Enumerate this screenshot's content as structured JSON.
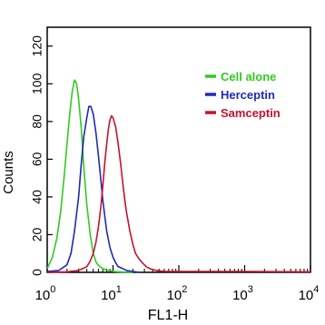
{
  "chart_data": {
    "type": "line",
    "xlabel": "FL1-H",
    "ylabel": "Counts",
    "xscale": "log",
    "xlim": [
      1,
      10000
    ],
    "ylim": [
      0,
      130
    ],
    "grid": false,
    "legend_position": "top-right",
    "x_ticks": [
      {
        "value": 1,
        "base": "10",
        "exp": "0"
      },
      {
        "value": 10,
        "base": "10",
        "exp": "1"
      },
      {
        "value": 100,
        "base": "10",
        "exp": "2"
      },
      {
        "value": 1000,
        "base": "10",
        "exp": "3"
      },
      {
        "value": 10000,
        "base": "10",
        "exp": "4"
      }
    ],
    "y_ticks": [
      0,
      20,
      40,
      60,
      80,
      100,
      120
    ],
    "series": [
      {
        "name": "Cell alone",
        "color": "#2ecc1f",
        "x": [
          1,
          1.2,
          1.4,
          1.6,
          1.8,
          2.0,
          2.2,
          2.4,
          2.6,
          2.8,
          3.0,
          3.3,
          3.6,
          4.0,
          4.5,
          5.0,
          5.6,
          6.3,
          7.0,
          8.0,
          9.0,
          10,
          12,
          15,
          20
        ],
        "y": [
          2,
          8,
          18,
          32,
          50,
          68,
          84,
          96,
          102,
          100,
          92,
          76,
          56,
          36,
          20,
          10,
          5,
          3,
          2,
          1,
          1,
          0.5,
          0.3,
          0.1,
          0
        ]
      },
      {
        "name": "Herceptin",
        "color": "#1f2ab8",
        "x": [
          1,
          1.5,
          2.0,
          2.3,
          2.6,
          3.0,
          3.3,
          3.6,
          4.0,
          4.3,
          4.6,
          5.0,
          5.5,
          6.0,
          6.5,
          7.0,
          8.0,
          9.0,
          10,
          11,
          12,
          14,
          16,
          20,
          25
        ],
        "y": [
          0.5,
          1,
          4,
          10,
          22,
          40,
          58,
          72,
          82,
          88,
          88,
          84,
          74,
          62,
          50,
          38,
          22,
          13,
          8,
          5,
          3,
          2,
          1,
          0.5,
          0
        ]
      },
      {
        "name": "Samceptin",
        "color": "#c8102e",
        "x": [
          1,
          2.0,
          3.0,
          4.0,
          4.5,
          5.0,
          5.5,
          6.0,
          6.5,
          7.0,
          7.5,
          8.0,
          8.5,
          9.0,
          9.5,
          10,
          11,
          12,
          13,
          14,
          15,
          16,
          18,
          20,
          22,
          25,
          28,
          32,
          36,
          40,
          45,
          50,
          60,
          100,
          1000,
          10000
        ],
        "y": [
          0,
          0.3,
          1,
          3,
          6,
          10,
          16,
          24,
          34,
          46,
          58,
          68,
          76,
          81,
          83,
          82,
          77,
          68,
          58,
          48,
          39,
          32,
          22,
          15,
          10,
          7,
          5,
          3,
          2,
          1.5,
          1,
          0.8,
          0.5,
          0.5,
          0.5,
          0.3
        ]
      }
    ]
  }
}
